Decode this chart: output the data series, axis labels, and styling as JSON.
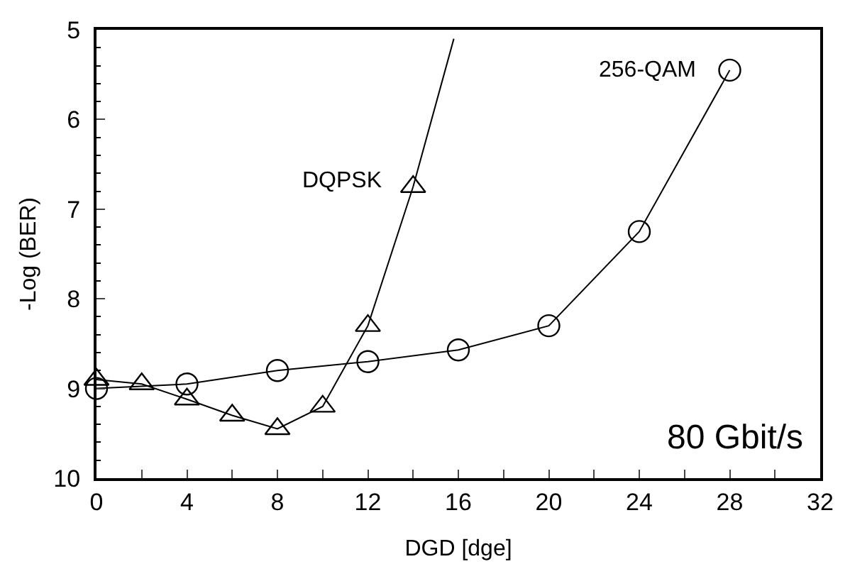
{
  "chart_data": {
    "type": "line",
    "xlabel": "DGD [dge]",
    "ylabel": "-Log (BER)",
    "annotations": [
      "80 Gbit/s"
    ],
    "xlim": [
      0,
      32
    ],
    "ylim": [
      10,
      5
    ],
    "xticks": [
      0,
      {
        "value": 2,
        "label": null
      },
      4,
      {
        "value": 6,
        "label": null
      },
      8,
      {
        "value": 10,
        "label": null
      },
      12,
      {
        "value": 14,
        "label": null
      },
      16,
      {
        "value": 18,
        "label": null
      },
      20,
      {
        "value": 22,
        "label": null
      },
      24,
      {
        "value": 26,
        "label": null
      },
      28,
      {
        "value": 30,
        "label": null
      },
      32
    ],
    "yticks": [
      5,
      6,
      7,
      8,
      9,
      10
    ],
    "legend": false,
    "line_style": "solid",
    "series": [
      {
        "name": "DQPSK",
        "color": "#000000",
        "marker": "triangle",
        "x": [
          0,
          2,
          4,
          6,
          8,
          10,
          12,
          14
        ],
        "values": [
          8.9,
          8.95,
          9.12,
          9.3,
          9.45,
          9.2,
          8.3,
          6.75
        ]
      },
      {
        "color": "#000000",
        "marker": "none",
        "x": [
          14,
          15.8
        ],
        "values": [
          6.75,
          5.1
        ]
      },
      {
        "name": "256-QAM",
        "color": "#000000",
        "marker": "circle",
        "x": [
          0,
          4,
          8,
          12,
          16,
          20,
          24,
          28
        ],
        "values": [
          9.0,
          8.95,
          8.8,
          8.7,
          8.57,
          8.3,
          7.25,
          5.45
        ]
      }
    ]
  }
}
